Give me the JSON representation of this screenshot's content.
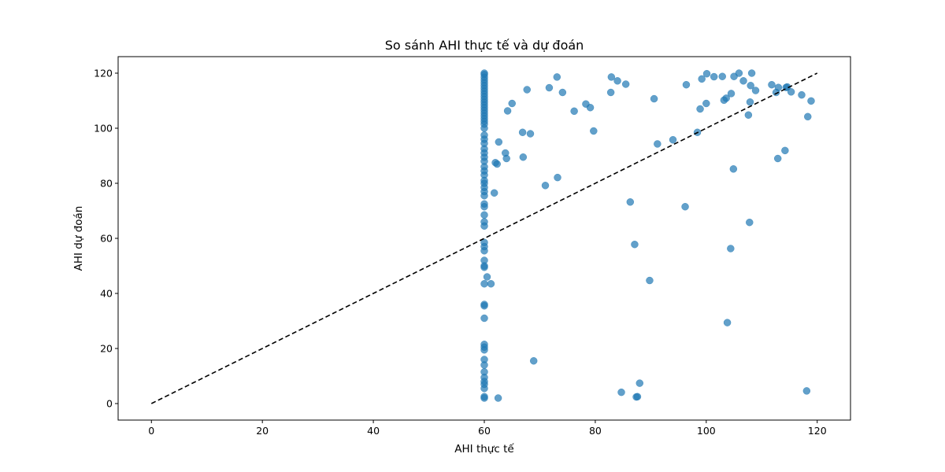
{
  "chart_data": {
    "type": "scatter",
    "title": "So sánh AHI thực tế và dự đoán",
    "xlabel": "AHI thực tế",
    "ylabel": "AHI dự đoán",
    "xlim": [
      -6,
      126
    ],
    "ylim": [
      -6,
      126
    ],
    "xticks": [
      "0",
      "20",
      "40",
      "60",
      "80",
      "100",
      "120"
    ],
    "yticks": [
      "0",
      "20",
      "40",
      "60",
      "80",
      "100",
      "120"
    ],
    "grid": false,
    "point_color": "#1f77b4",
    "reference_line": {
      "from": [
        0,
        0
      ],
      "to": [
        120,
        120
      ],
      "style": "dashed",
      "color": "#000000"
    },
    "points": [
      [
        60,
        120
      ],
      [
        60,
        119.5
      ],
      [
        60,
        118.5
      ],
      [
        60,
        117.5
      ],
      [
        60,
        116.5
      ],
      [
        60,
        115.5
      ],
      [
        60,
        114.5
      ],
      [
        60,
        113.5
      ],
      [
        60,
        112.5
      ],
      [
        60,
        111.5
      ],
      [
        60,
        110.5
      ],
      [
        60,
        109.5
      ],
      [
        60,
        108.5
      ],
      [
        60,
        107.5
      ],
      [
        60,
        106.5
      ],
      [
        60,
        105.5
      ],
      [
        60,
        104.5
      ],
      [
        60,
        103.5
      ],
      [
        60,
        102.5
      ],
      [
        60,
        101.5
      ],
      [
        60,
        100
      ],
      [
        60,
        97.5
      ],
      [
        60,
        96
      ],
      [
        60,
        94.5
      ],
      [
        60,
        92.5
      ],
      [
        60,
        91
      ],
      [
        60,
        89.5
      ],
      [
        60,
        88
      ],
      [
        60,
        86
      ],
      [
        60,
        84.5
      ],
      [
        60,
        83
      ],
      [
        60,
        81
      ],
      [
        60,
        80
      ],
      [
        60,
        78.5
      ],
      [
        60,
        77
      ],
      [
        60,
        75.5
      ],
      [
        60,
        72.5
      ],
      [
        60,
        71.5
      ],
      [
        60,
        68.5
      ],
      [
        60,
        66
      ],
      [
        60,
        64.5
      ],
      [
        60,
        58.5
      ],
      [
        60,
        57
      ],
      [
        60,
        55.5
      ],
      [
        60,
        52
      ],
      [
        60,
        50
      ],
      [
        60,
        49.5
      ],
      [
        60,
        43.5
      ],
      [
        60,
        36
      ],
      [
        60,
        35.5
      ],
      [
        60,
        31
      ],
      [
        60,
        21.5
      ],
      [
        60,
        20.5
      ],
      [
        60,
        19.5
      ],
      [
        60,
        16
      ],
      [
        60,
        14
      ],
      [
        60,
        11.5
      ],
      [
        60,
        9.5
      ],
      [
        60,
        8
      ],
      [
        60,
        7
      ],
      [
        60,
        5.5
      ],
      [
        60,
        2.5
      ],
      [
        60,
        2
      ],
      [
        60.5,
        46
      ],
      [
        61.2,
        43.5
      ],
      [
        61.8,
        76.5
      ],
      [
        62,
        87.5
      ],
      [
        62.3,
        87
      ],
      [
        62.5,
        2
      ],
      [
        62.6,
        95
      ],
      [
        63.8,
        91
      ],
      [
        64,
        89
      ],
      [
        64.2,
        106.3
      ],
      [
        65,
        109
      ],
      [
        66.9,
        98.5
      ],
      [
        67,
        89.5
      ],
      [
        67.7,
        114
      ],
      [
        68.3,
        98
      ],
      [
        68.9,
        15.5
      ],
      [
        71,
        79.2
      ],
      [
        71.7,
        114.7
      ],
      [
        73.1,
        118.6
      ],
      [
        73.2,
        82.1
      ],
      [
        74.1,
        113
      ],
      [
        76.2,
        106.2
      ],
      [
        78.3,
        108.8
      ],
      [
        79.1,
        107.5
      ],
      [
        79.7,
        99
      ],
      [
        82.8,
        113
      ],
      [
        82.9,
        118.6
      ],
      [
        84,
        117.2
      ],
      [
        84.7,
        4.1
      ],
      [
        85.5,
        116
      ],
      [
        86.3,
        73.2
      ],
      [
        87.1,
        57.8
      ],
      [
        87.4,
        2.4
      ],
      [
        87.6,
        2.5
      ],
      [
        88,
        7.4
      ],
      [
        89.8,
        44.7
      ],
      [
        90.6,
        110.7
      ],
      [
        91.2,
        94.3
      ],
      [
        94,
        95.8
      ],
      [
        96.2,
        71.5
      ],
      [
        96.4,
        115.8
      ],
      [
        98.4,
        98.5
      ],
      [
        98.9,
        107
      ],
      [
        99.2,
        117.9
      ],
      [
        100,
        109
      ],
      [
        100.1,
        119.8
      ],
      [
        101.4,
        118.7
      ],
      [
        102.9,
        118.8
      ],
      [
        103.2,
        110.2
      ],
      [
        103.6,
        110.9
      ],
      [
        103.8,
        29.4
      ],
      [
        104.4,
        56.3
      ],
      [
        104.5,
        112.6
      ],
      [
        104.9,
        85.2
      ],
      [
        105,
        118.8
      ],
      [
        105.9,
        120
      ],
      [
        106.7,
        117.2
      ],
      [
        107.6,
        104.8
      ],
      [
        107.8,
        65.8
      ],
      [
        107.9,
        109.5
      ],
      [
        108,
        115.5
      ],
      [
        108.2,
        120
      ],
      [
        108.9,
        113.7
      ],
      [
        111.8,
        115.8
      ],
      [
        112.6,
        113
      ],
      [
        112.9,
        89
      ],
      [
        113,
        114.8
      ],
      [
        114.2,
        91.9
      ],
      [
        114.4,
        114.8
      ],
      [
        114.6,
        115
      ],
      [
        115.3,
        113.2
      ],
      [
        117.2,
        112.1
      ],
      [
        118.1,
        4.6
      ],
      [
        118.3,
        104.2
      ],
      [
        118.9,
        109.9
      ]
    ]
  }
}
